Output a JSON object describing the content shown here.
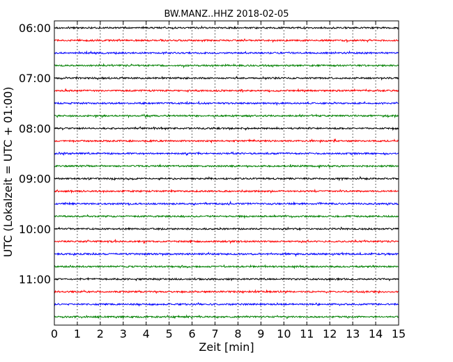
{
  "chart_data": {
    "type": "line",
    "title": "BW.MANZ..HHZ 2018-02-05",
    "xlabel": "Zeit  [min]",
    "ylabel": "UTC (Lokalzeit = UTC + 01:00)",
    "xlim": [
      0,
      15
    ],
    "x_ticks": [
      "0",
      "1",
      "2",
      "3",
      "4",
      "5",
      "6",
      "7",
      "8",
      "9",
      "10",
      "11",
      "12",
      "13",
      "14",
      "15"
    ],
    "y_ticks": [
      "06:00",
      "07:00",
      "08:00",
      "09:00",
      "10:00",
      "11:00"
    ],
    "grid": "vertical dotted",
    "trace_colors": [
      "#000000",
      "#ff0000",
      "#0000ff",
      "#008000"
    ],
    "traces": [
      {
        "start": "06:00",
        "color": "#000000"
      },
      {
        "start": "06:15",
        "color": "#ff0000"
      },
      {
        "start": "06:30",
        "color": "#0000ff"
      },
      {
        "start": "06:45",
        "color": "#008000"
      },
      {
        "start": "07:00",
        "color": "#000000"
      },
      {
        "start": "07:15",
        "color": "#ff0000"
      },
      {
        "start": "07:30",
        "color": "#0000ff"
      },
      {
        "start": "07:45",
        "color": "#008000"
      },
      {
        "start": "08:00",
        "color": "#000000"
      },
      {
        "start": "08:15",
        "color": "#ff0000"
      },
      {
        "start": "08:30",
        "color": "#0000ff"
      },
      {
        "start": "08:45",
        "color": "#008000"
      },
      {
        "start": "09:00",
        "color": "#000000"
      },
      {
        "start": "09:15",
        "color": "#ff0000"
      },
      {
        "start": "09:30",
        "color": "#0000ff"
      },
      {
        "start": "09:45",
        "color": "#008000"
      },
      {
        "start": "10:00",
        "color": "#000000"
      },
      {
        "start": "10:15",
        "color": "#ff0000"
      },
      {
        "start": "10:30",
        "color": "#0000ff"
      },
      {
        "start": "10:45",
        "color": "#008000"
      },
      {
        "start": "11:00",
        "color": "#000000"
      },
      {
        "start": "11:15",
        "color": "#ff0000"
      },
      {
        "start": "11:30",
        "color": "#0000ff"
      },
      {
        "start": "11:45",
        "color": "#008000"
      }
    ]
  }
}
